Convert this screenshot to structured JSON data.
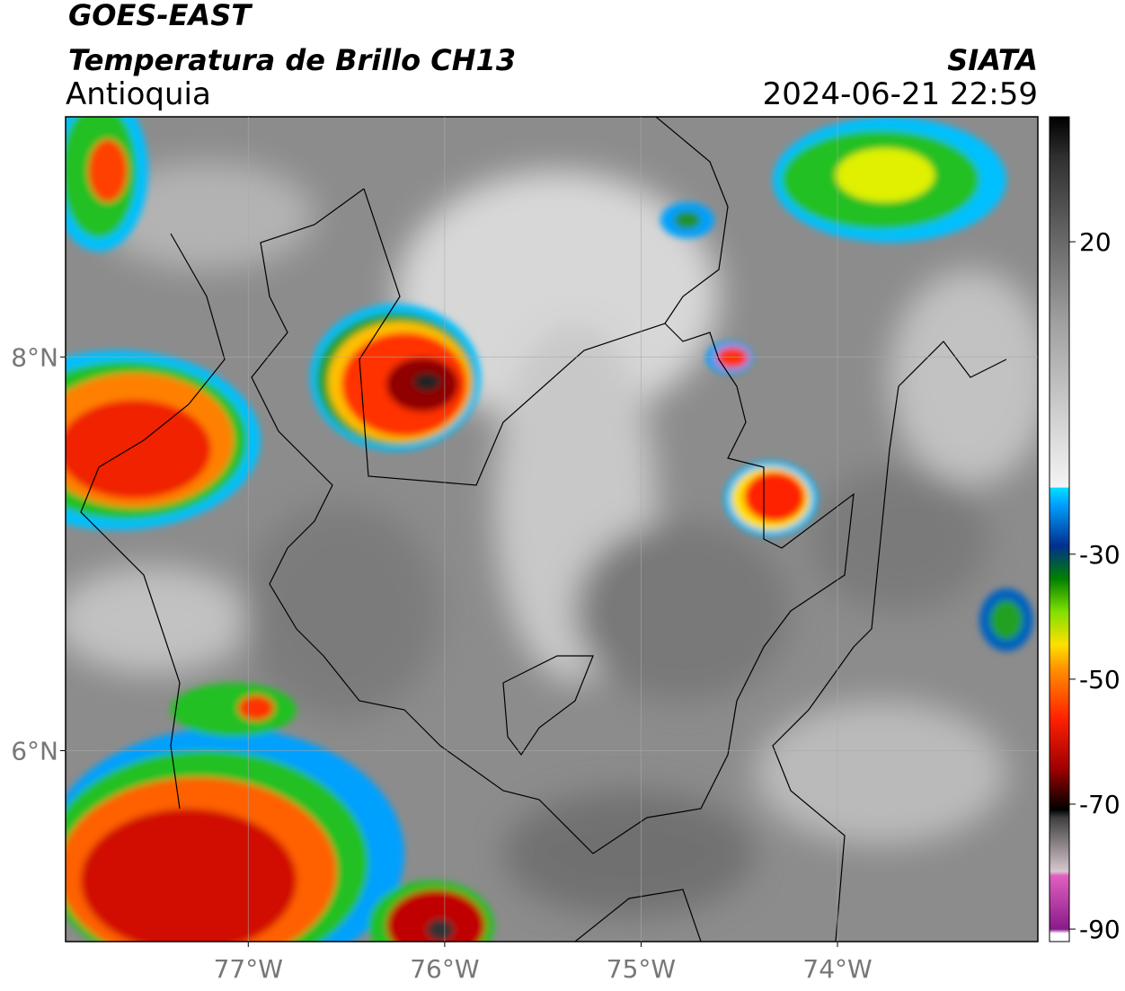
{
  "map": {
    "title": "GOES-EAST",
    "subtitle": "Temperatura de Brillo CH13",
    "region": "Antioquia",
    "source": "SIATA",
    "timestamp": "2024-06-21 22:59",
    "xlim": [
      -77.93,
      -72.98
    ],
    "ylim": [
      5.03,
      9.22
    ],
    "xticks": [
      {
        "value": -77,
        "label": "77°W"
      },
      {
        "value": -76,
        "label": "76°W"
      },
      {
        "value": -75,
        "label": "75°W"
      },
      {
        "value": -74,
        "label": "74°W"
      }
    ],
    "yticks": [
      {
        "value": 8,
        "label": "8°N"
      },
      {
        "value": 6,
        "label": "6°N"
      }
    ],
    "grid": true,
    "colorbar": {
      "lim": [
        -92,
        40
      ],
      "ticks": [
        20,
        -30,
        -50,
        -70,
        -90
      ]
    }
  }
}
